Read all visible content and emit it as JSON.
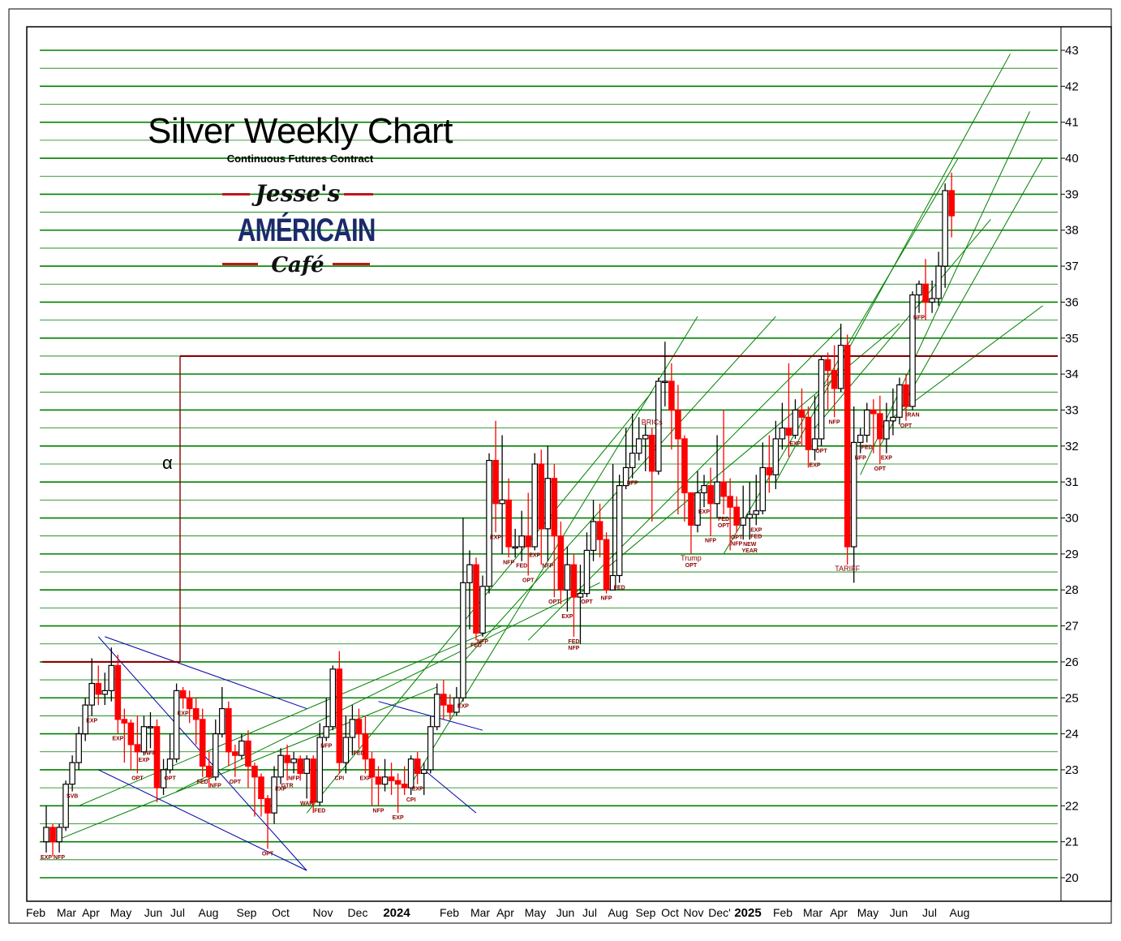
{
  "chart_data": {
    "type": "candlestick",
    "title": "Silver Weekly Chart",
    "subtitle": "Continuous Futures Contract",
    "logo_text": [
      "Jesse's",
      "AMÉRICAIN",
      "Café"
    ],
    "alpha_label": "α",
    "y_ticks": [
      20,
      21,
      22,
      23,
      24,
      25,
      26,
      27,
      28,
      29,
      30,
      31,
      32,
      33,
      34,
      35,
      36,
      37,
      38,
      39,
      40,
      41,
      42,
      43
    ],
    "ylim": [
      19.5,
      43.5
    ],
    "x_labels": [
      "Feb",
      "Mar",
      "Apr",
      "May",
      "Jun",
      "Jul",
      "Aug",
      "Sep",
      "Oct",
      "Nov",
      "Dec",
      "2024",
      "Feb",
      "Mar",
      "Apr",
      "May",
      "Jun",
      "Jul",
      "Aug",
      "Sep",
      "Oct",
      "Nov",
      "Dec'",
      "2025",
      "Feb",
      "Mar",
      "Apr",
      "May",
      "Jun",
      "Jul",
      "Aug"
    ],
    "horizontal_levels": [
      26.0,
      34.5
    ],
    "candles": [
      [
        21.0,
        21.4,
        20.7,
        22.0
      ],
      [
        21.4,
        21.0,
        20.6,
        21.5
      ],
      [
        21.0,
        21.4,
        20.7,
        21.5
      ],
      [
        21.4,
        22.6,
        21.3,
        22.7
      ],
      [
        22.6,
        23.2,
        22.4,
        23.4
      ],
      [
        23.2,
        24.0,
        23.0,
        24.2
      ],
      [
        24.0,
        24.8,
        23.8,
        25.0
      ],
      [
        24.8,
        25.4,
        24.5,
        26.1
      ],
      [
        25.4,
        25.1,
        24.8,
        25.9
      ],
      [
        25.1,
        25.2,
        24.8,
        25.7
      ],
      [
        25.2,
        25.9,
        24.9,
        26.4
      ],
      [
        25.9,
        24.4,
        24.0,
        26.2
      ],
      [
        24.4,
        24.3,
        23.2,
        24.7
      ],
      [
        24.3,
        23.7,
        23.0,
        24.4
      ],
      [
        23.7,
        23.5,
        22.9,
        24.5
      ],
      [
        23.5,
        24.2,
        23.4,
        24.5
      ],
      [
        24.2,
        24.2,
        23.6,
        24.6
      ],
      [
        24.2,
        22.5,
        22.1,
        24.4
      ],
      [
        22.5,
        23.0,
        22.3,
        23.3
      ],
      [
        23.0,
        23.3,
        22.9,
        24.0
      ],
      [
        23.3,
        25.2,
        23.2,
        25.4
      ],
      [
        25.2,
        25.0,
        24.7,
        25.3
      ],
      [
        25.0,
        24.7,
        24.3,
        25.2
      ],
      [
        24.7,
        24.4,
        23.7,
        25.0
      ],
      [
        24.4,
        23.1,
        22.8,
        24.7
      ],
      [
        23.1,
        22.8,
        22.5,
        23.5
      ],
      [
        22.8,
        24.0,
        22.7,
        24.4
      ],
      [
        24.0,
        24.7,
        23.9,
        25.3
      ],
      [
        24.7,
        23.5,
        23.1,
        24.9
      ],
      [
        23.5,
        23.4,
        22.8,
        23.7
      ],
      [
        23.4,
        23.8,
        23.3,
        24.0
      ],
      [
        23.8,
        23.1,
        22.5,
        24.1
      ],
      [
        23.1,
        22.8,
        21.7,
        23.2
      ],
      [
        22.8,
        22.2,
        21.7,
        22.9
      ],
      [
        22.2,
        21.8,
        20.8,
        22.3
      ],
      [
        21.8,
        22.8,
        21.5,
        23.1
      ],
      [
        22.8,
        23.4,
        22.6,
        23.6
      ],
      [
        23.4,
        23.2,
        22.7,
        23.7
      ],
      [
        23.2,
        23.3,
        22.9,
        23.5
      ],
      [
        23.3,
        22.9,
        22.7,
        23.4
      ],
      [
        22.9,
        23.3,
        22.2,
        23.4
      ],
      [
        23.3,
        22.1,
        21.8,
        23.4
      ],
      [
        22.1,
        23.9,
        22.0,
        24.3
      ],
      [
        23.9,
        24.2,
        23.8,
        25.0
      ],
      [
        24.2,
        25.8,
        24.1,
        25.9
      ],
      [
        25.8,
        23.2,
        22.9,
        26.3
      ],
      [
        23.2,
        23.9,
        22.9,
        24.5
      ],
      [
        23.9,
        24.4,
        23.4,
        24.8
      ],
      [
        24.4,
        24.0,
        23.6,
        24.7
      ],
      [
        24.0,
        23.3,
        22.9,
        24.5
      ],
      [
        23.3,
        22.8,
        22.0,
        23.5
      ],
      [
        22.8,
        22.6,
        22.0,
        23.1
      ],
      [
        22.6,
        22.8,
        22.4,
        23.3
      ],
      [
        22.8,
        22.7,
        22.3,
        23.2
      ],
      [
        22.7,
        22.6,
        21.8,
        22.9
      ],
      [
        22.6,
        22.5,
        22.3,
        23.1
      ],
      [
        22.5,
        23.3,
        22.3,
        23.4
      ],
      [
        23.3,
        22.9,
        22.6,
        23.5
      ],
      [
        22.9,
        23.0,
        22.3,
        23.2
      ],
      [
        23.0,
        24.2,
        22.9,
        24.5
      ],
      [
        24.2,
        25.1,
        24.1,
        25.4
      ],
      [
        25.1,
        24.8,
        24.4,
        25.5
      ],
      [
        24.8,
        24.6,
        24.4,
        25.1
      ],
      [
        24.6,
        25.0,
        24.5,
        25.3
      ],
      [
        25.0,
        28.2,
        24.9,
        30.0
      ],
      [
        28.2,
        28.7,
        26.9,
        29.1
      ],
      [
        28.7,
        26.8,
        26.6,
        28.9
      ],
      [
        26.8,
        28.1,
        26.7,
        28.4
      ],
      [
        28.1,
        31.6,
        27.9,
        31.8
      ],
      [
        31.6,
        30.4,
        29.6,
        32.7
      ],
      [
        30.4,
        30.5,
        29.0,
        32.3
      ],
      [
        30.5,
        29.2,
        28.9,
        31.1
      ],
      [
        29.2,
        29.2,
        28.9,
        29.7
      ],
      [
        29.2,
        29.5,
        28.8,
        30.2
      ],
      [
        29.5,
        29.2,
        28.4,
        30.7
      ],
      [
        29.2,
        31.5,
        29.1,
        31.8
      ],
      [
        31.5,
        29.7,
        28.7,
        31.9
      ],
      [
        29.7,
        31.1,
        28.8,
        32.0
      ],
      [
        31.1,
        29.5,
        27.8,
        31.5
      ],
      [
        29.5,
        28.0,
        27.6,
        29.9
      ],
      [
        28.0,
        28.7,
        27.4,
        29.2
      ],
      [
        28.7,
        27.8,
        26.7,
        29.0
      ],
      [
        27.8,
        27.9,
        26.5,
        28.7
      ],
      [
        27.9,
        29.1,
        27.8,
        29.6
      ],
      [
        29.1,
        29.9,
        28.8,
        30.5
      ],
      [
        29.9,
        29.4,
        28.9,
        30.4
      ],
      [
        29.4,
        28.0,
        27.9,
        29.6
      ],
      [
        28.0,
        28.4,
        28.0,
        31.5
      ],
      [
        28.4,
        30.9,
        28.2,
        31.2
      ],
      [
        30.9,
        31.4,
        30.8,
        32.5
      ],
      [
        31.4,
        31.8,
        31.1,
        32.9
      ],
      [
        31.8,
        32.2,
        31.6,
        32.8
      ],
      [
        32.2,
        32.3,
        31.3,
        32.6
      ],
      [
        32.3,
        31.3,
        29.9,
        32.5
      ],
      [
        31.3,
        33.8,
        31.2,
        33.9
      ],
      [
        33.8,
        33.8,
        33.1,
        34.9
      ],
      [
        33.8,
        33.0,
        31.9,
        34.3
      ],
      [
        33.0,
        32.2,
        30.1,
        33.7
      ],
      [
        32.2,
        30.7,
        29.9,
        32.3
      ],
      [
        30.7,
        29.8,
        29.0,
        30.7
      ],
      [
        29.8,
        30.7,
        29.6,
        31.3
      ],
      [
        30.7,
        30.9,
        30.3,
        31.2
      ],
      [
        30.9,
        30.4,
        29.5,
        31.4
      ],
      [
        30.4,
        31.0,
        30.0,
        32.3
      ],
      [
        31.0,
        30.6,
        30.1,
        33.0
      ],
      [
        30.6,
        30.3,
        29.1,
        31.1
      ],
      [
        30.3,
        29.8,
        29.6,
        30.6
      ],
      [
        29.8,
        30.0,
        29.4,
        30.9
      ],
      [
        30.0,
        30.1,
        29.4,
        31.0
      ],
      [
        30.1,
        30.2,
        29.8,
        31.2
      ],
      [
        30.2,
        31.4,
        30.1,
        32.1
      ],
      [
        31.4,
        31.2,
        30.7,
        32.3
      ],
      [
        31.2,
        32.2,
        30.8,
        32.7
      ],
      [
        32.2,
        32.5,
        31.9,
        33.2
      ],
      [
        32.5,
        32.3,
        31.7,
        34.3
      ],
      [
        32.3,
        33.0,
        32.2,
        33.3
      ],
      [
        33.0,
        32.8,
        32.0,
        33.6
      ],
      [
        32.8,
        31.9,
        31.4,
        33.1
      ],
      [
        31.9,
        32.2,
        31.6,
        33.4
      ],
      [
        32.2,
        34.4,
        32.0,
        34.5
      ],
      [
        34.4,
        34.1,
        33.0,
        34.6
      ],
      [
        34.1,
        33.6,
        32.8,
        34.8
      ],
      [
        33.6,
        34.8,
        33.5,
        35.4
      ],
      [
        34.8,
        29.2,
        28.7,
        35.1
      ],
      [
        29.2,
        32.1,
        28.2,
        33.1
      ],
      [
        32.1,
        32.3,
        31.8,
        32.5
      ],
      [
        32.3,
        33.0,
        32.1,
        33.2
      ],
      [
        33.0,
        32.9,
        31.8,
        33.3
      ],
      [
        32.9,
        32.2,
        31.5,
        33.4
      ],
      [
        32.2,
        32.7,
        31.8,
        33.2
      ],
      [
        32.7,
        32.8,
        32.3,
        33.6
      ],
      [
        32.8,
        33.7,
        32.6,
        33.9
      ],
      [
        33.7,
        33.1,
        32.7,
        34.0
      ],
      [
        33.1,
        36.2,
        33.0,
        36.3
      ],
      [
        36.2,
        36.5,
        35.7,
        36.6
      ],
      [
        36.5,
        36.0,
        35.5,
        37.2
      ],
      [
        36.0,
        36.1,
        35.7,
        36.6
      ],
      [
        36.1,
        37.0,
        35.9,
        37.4
      ],
      [
        37.0,
        39.1,
        36.4,
        39.3
      ],
      [
        39.1,
        38.4,
        37.8,
        39.6
      ]
    ],
    "events": [
      {
        "label": "EXP",
        "i": 0,
        "below": true
      },
      {
        "label": "NFP",
        "i": 2,
        "below": true
      },
      {
        "label": "SVB",
        "i": 4,
        "below": true
      },
      {
        "label": "EXP",
        "i": 7,
        "below": true
      },
      {
        "label": "EXP",
        "i": 11,
        "below": true
      },
      {
        "label": "OPT",
        "i": 14,
        "below": true
      },
      {
        "label": "EXP",
        "i": 15,
        "below": true
      },
      {
        "label": "NFP",
        "i": 16,
        "below": true
      },
      {
        "label": "OPT",
        "i": 19,
        "below": true
      },
      {
        "label": "EXP",
        "i": 21,
        "below": true
      },
      {
        "label": "FED",
        "i": 24,
        "below": true
      },
      {
        "label": "NFP",
        "i": 26,
        "below": true
      },
      {
        "label": "OPT",
        "i": 29,
        "below": true
      },
      {
        "label": "OPT",
        "i": 34,
        "below": true
      },
      {
        "label": "EXP",
        "i": 36,
        "below": true
      },
      {
        "label": "GTR",
        "i": 37,
        "below": true
      },
      {
        "label": "NFP",
        "i": 38,
        "below": true
      },
      {
        "label": "WAR",
        "i": 40,
        "below": true
      },
      {
        "label": "FED",
        "i": 42,
        "below": true
      },
      {
        "label": "NFP",
        "i": 43,
        "below": true
      },
      {
        "label": "CPI",
        "i": 45,
        "below": true
      },
      {
        "label": "FED",
        "i": 48,
        "below": true
      },
      {
        "label": "EXP",
        "i": 49,
        "below": true
      },
      {
        "label": "NFP",
        "i": 51,
        "below": true
      },
      {
        "label": "EXP",
        "i": 54,
        "below": true
      },
      {
        "label": "CPI",
        "i": 56,
        "below": true
      },
      {
        "label": "EXP",
        "i": 57,
        "below": true
      },
      {
        "label": "EXP",
        "i": 64,
        "below": true
      },
      {
        "label": "FED",
        "i": 66,
        "below": true
      },
      {
        "label": "NFP",
        "i": 67,
        "below": true
      },
      {
        "label": "EXP",
        "i": 69,
        "below": true
      },
      {
        "label": "NFP",
        "i": 71,
        "below": true
      },
      {
        "label": "FED",
        "i": 73,
        "below": true
      },
      {
        "label": "OPT",
        "i": 74,
        "below": true
      },
      {
        "label": "EXP",
        "i": 75,
        "below": true
      },
      {
        "label": "NFP",
        "i": 77,
        "below": true
      },
      {
        "label": "OPT",
        "i": 78,
        "below": true
      },
      {
        "label": "EXP",
        "i": 80,
        "below": true
      },
      {
        "label": "FED",
        "i": 81,
        "below": true
      },
      {
        "label": "NFP",
        "i": 81,
        "below": true
      },
      {
        "label": "OPT",
        "i": 83,
        "below": true
      },
      {
        "label": "NFP",
        "i": 86,
        "below": true
      },
      {
        "label": "FED",
        "i": 88,
        "below": true
      },
      {
        "label": "NFP",
        "i": 90,
        "below": true
      },
      {
        "label": "BRICs",
        "i": 93,
        "below": false
      },
      {
        "label": "Trump",
        "i": 99,
        "below": true
      },
      {
        "label": "OPT",
        "i": 99,
        "below": true
      },
      {
        "label": "EXP",
        "i": 101,
        "below": true
      },
      {
        "label": "NFP",
        "i": 102,
        "below": true
      },
      {
        "label": "FED",
        "i": 104,
        "below": true
      },
      {
        "label": "OPT",
        "i": 104,
        "below": true
      },
      {
        "label": "OPT",
        "i": 106,
        "below": true
      },
      {
        "label": "NFP",
        "i": 106,
        "below": true
      },
      {
        "label": "NEW",
        "i": 108,
        "below": true
      },
      {
        "label": "YEAR",
        "i": 108,
        "below": true
      },
      {
        "label": "EXP",
        "i": 109,
        "below": true
      },
      {
        "label": "FED",
        "i": 109,
        "below": true
      },
      {
        "label": "EXP",
        "i": 115,
        "below": true
      },
      {
        "label": "EXP",
        "i": 118,
        "below": true
      },
      {
        "label": "OPT",
        "i": 119,
        "below": true
      },
      {
        "label": "NFP",
        "i": 121,
        "below": true
      },
      {
        "label": "TARIFF",
        "i": 123,
        "below": true
      },
      {
        "label": "NFP",
        "i": 125,
        "below": true
      },
      {
        "label": "FED",
        "i": 126,
        "below": true
      },
      {
        "label": "OPT",
        "i": 128,
        "below": true
      },
      {
        "label": "EXP",
        "i": 129,
        "below": true
      },
      {
        "label": "OPT",
        "i": 132,
        "below": true
      },
      {
        "label": "IRAN",
        "i": 133,
        "below": true
      },
      {
        "label": "NFP",
        "i": 134,
        "below": true
      }
    ]
  },
  "colors": {
    "up": "#ffffff",
    "down": "#ff0000",
    "outline": "#000000",
    "grid": "#008000",
    "level": "#8b0000",
    "channel": "#0000aa",
    "fanline": "#008000"
  }
}
